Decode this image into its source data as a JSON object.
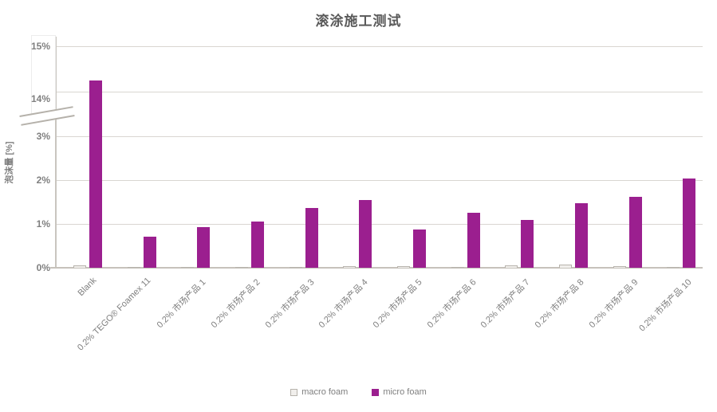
{
  "title": "滚涂施工测试",
  "y_axis": {
    "label": "泡沫量 [%]"
  },
  "legend": {
    "items": [
      {
        "label": "macro foam",
        "color": "#f1efec",
        "border": "#b7b3ac"
      },
      {
        "label": "micro foam",
        "color": "#9b1f8f",
        "border": "#9b1f8f"
      }
    ]
  },
  "colors": {
    "micro_foam": "#9b1f8f",
    "macro_foam_fill": "#f1efec",
    "macro_foam_border": "#b7b3ac",
    "gridline": "#d9d6d1",
    "axis": "#c9c5bf",
    "tick_text": "#7f7f7f",
    "title_text": "#595959"
  },
  "chart_data": {
    "type": "bar",
    "title": "滚涂施工测试",
    "xlabel": "",
    "ylabel": "泡沫量 [%]",
    "grid": true,
    "legend_position": "bottom",
    "axis_break": {
      "lower_segment": [
        0,
        3
      ],
      "upper_segment": [
        14,
        15
      ],
      "note": "y-axis broken between 3% and 14%"
    },
    "y_ticks": [
      {
        "label": "0%",
        "value": 0,
        "dy": 0
      },
      {
        "label": "1%",
        "value": 1,
        "dy": 0
      },
      {
        "label": "2%",
        "value": 2,
        "dy": 0
      },
      {
        "label": "3%",
        "value": 3,
        "dy": 0
      },
      {
        "label": "14%",
        "value": 14,
        "dy": 9
      },
      {
        "label": "15%",
        "value": 15,
        "dy": 0
      }
    ],
    "categories": [
      "Blank",
      "0.2% TEGO® Foamex 11",
      "0.2% 市场产品 1",
      "0.2% 市场产品 2",
      "0.2% 市场产品 3",
      "0.2% 市场产品 4",
      "0.2% 市场产品 5",
      "0.2% 市场产品 6",
      "0.2% 市场产品 7",
      "0.2% 市场产品 8",
      "0.2% 市场产品 9",
      "0.2% 市场产品 10"
    ],
    "series": [
      {
        "name": "macro foam",
        "values": [
          0.05,
          0.01,
          0.01,
          0.01,
          0.01,
          0.03,
          0.03,
          0.01,
          0.05,
          0.07,
          0.04,
          0.01
        ]
      },
      {
        "name": "micro foam",
        "values": [
          14.25,
          0.7,
          0.93,
          1.05,
          1.36,
          1.55,
          0.88,
          1.25,
          1.09,
          1.48,
          1.62,
          2.03
        ]
      }
    ]
  }
}
